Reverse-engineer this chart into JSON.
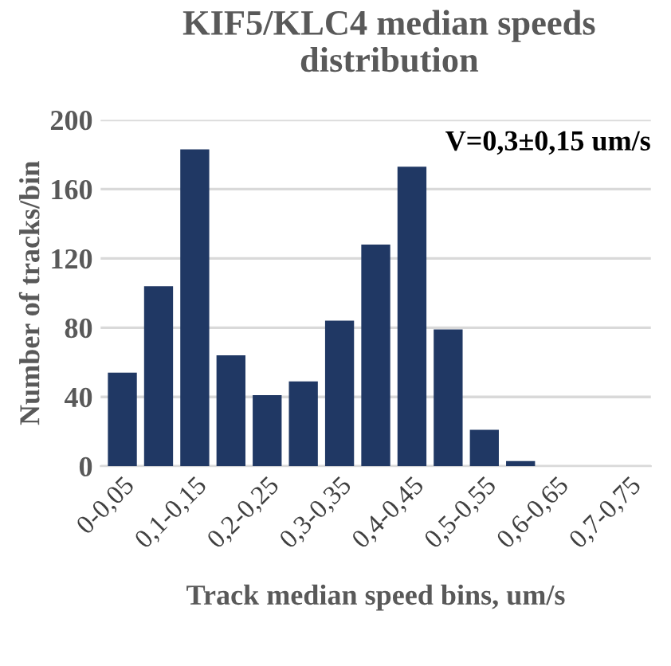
{
  "chart_data": {
    "type": "bar",
    "title": "KIF5/KLC4 median speeds distribution",
    "xlabel": "Track median speed bins, um/s",
    "ylabel": "Number of tracks/bin",
    "categories": [
      "0-0,05",
      null,
      "0,1-0,15",
      null,
      "0,2-0,25",
      null,
      "0,3-0,35",
      null,
      "0,4-0,45",
      null,
      "0,5-0,55",
      null,
      "0,6-0,65",
      null,
      "0,7-0,75"
    ],
    "values": [
      54,
      104,
      183,
      64,
      41,
      49,
      84,
      128,
      173,
      79,
      21,
      3,
      0,
      0,
      0
    ],
    "color": "#203864",
    "ylim": [
      0,
      200
    ],
    "yticks": [
      0,
      40,
      80,
      120,
      160,
      200
    ],
    "grid": "y",
    "annotations": [
      "V=0,3±0,15 um/s"
    ]
  }
}
